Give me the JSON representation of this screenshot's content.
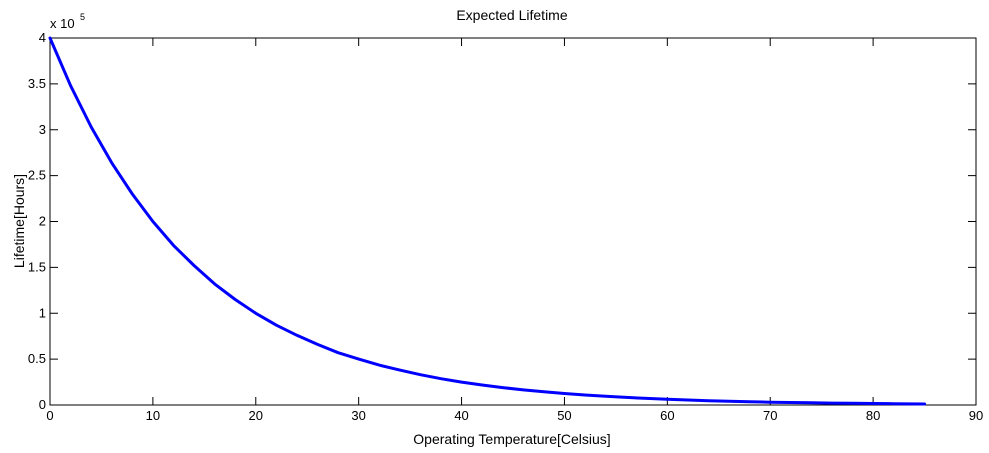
{
  "chart_data": {
    "type": "line",
    "title": "Expected Lifetime",
    "xlabel": "Operating Temperature[Celsius]",
    "ylabel": "Lifetime[Hours]",
    "y_multiplier_label": {
      "base": "x 10",
      "exponent": "5"
    },
    "xlim": [
      0,
      90
    ],
    "ylim": [
      0,
      4
    ],
    "y_scale_factor": 100000,
    "xticks": [
      0,
      10,
      20,
      30,
      40,
      50,
      60,
      70,
      80,
      90
    ],
    "xtick_labels": [
      "0",
      "10",
      "20",
      "30",
      "40",
      "50",
      "60",
      "70",
      "80",
      "90"
    ],
    "yticks": [
      0,
      0.5,
      1,
      1.5,
      2,
      2.5,
      3,
      3.5,
      4
    ],
    "ytick_labels": [
      "0",
      "0.5",
      "1",
      "1.5",
      "2",
      "2.5",
      "3",
      "3.5",
      "4"
    ],
    "grid": false,
    "legend": "none",
    "series": [
      {
        "color": "#0000ff",
        "x": [
          0,
          2,
          4,
          6,
          8,
          10,
          12,
          14,
          16,
          18,
          20,
          22,
          24,
          26,
          28,
          30,
          32,
          34,
          36,
          38,
          40,
          42,
          44,
          46,
          48,
          50,
          52,
          54,
          56,
          58,
          60,
          62,
          64,
          66,
          68,
          70,
          72,
          74,
          76,
          78,
          80,
          82,
          85
        ],
        "y": [
          4.0,
          3.48,
          3.03,
          2.64,
          2.3,
          2.0,
          1.74,
          1.52,
          1.32,
          1.15,
          1.0,
          0.87,
          0.76,
          0.66,
          0.57,
          0.5,
          0.435,
          0.38,
          0.33,
          0.287,
          0.25,
          0.218,
          0.19,
          0.165,
          0.144,
          0.125,
          0.109,
          0.095,
          0.083,
          0.072,
          0.063,
          0.055,
          0.047,
          0.041,
          0.036,
          0.031,
          0.027,
          0.024,
          0.021,
          0.018,
          0.016,
          0.014,
          0.011
        ]
      }
    ]
  }
}
